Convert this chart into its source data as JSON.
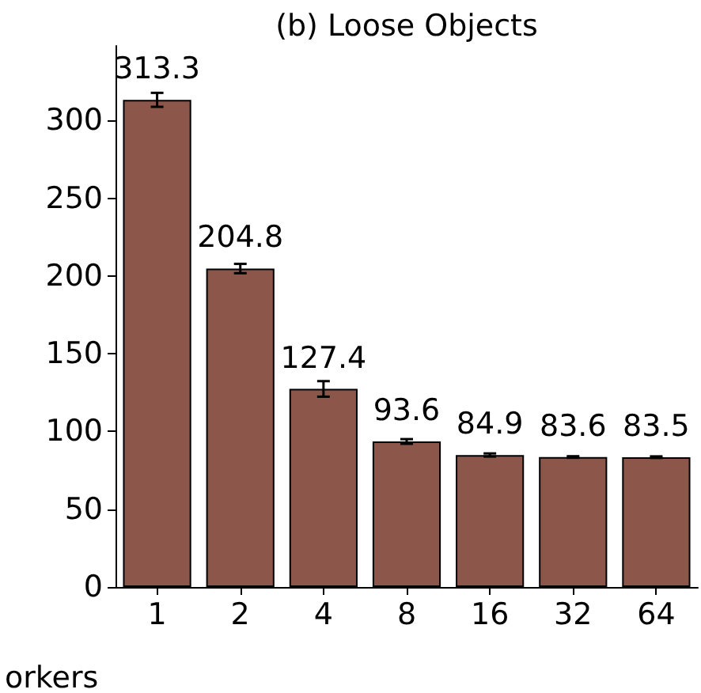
{
  "chart_data": {
    "type": "bar",
    "title": "(b) Loose Objects",
    "xlabel": "orkers",
    "categories": [
      "1",
      "2",
      "4",
      "8",
      "16",
      "32",
      "64"
    ],
    "values": [
      313.3,
      204.8,
      127.4,
      93.6,
      84.9,
      83.6,
      83.5
    ],
    "errors": [
      4.5,
      3,
      5,
      1.5,
      1,
      0.5,
      0.5
    ],
    "color": "#8c564b",
    "ylim": [
      0,
      348
    ],
    "yticks": [
      0,
      50,
      100,
      150,
      200,
      250,
      300
    ],
    "grid": false,
    "data_labels": true
  }
}
